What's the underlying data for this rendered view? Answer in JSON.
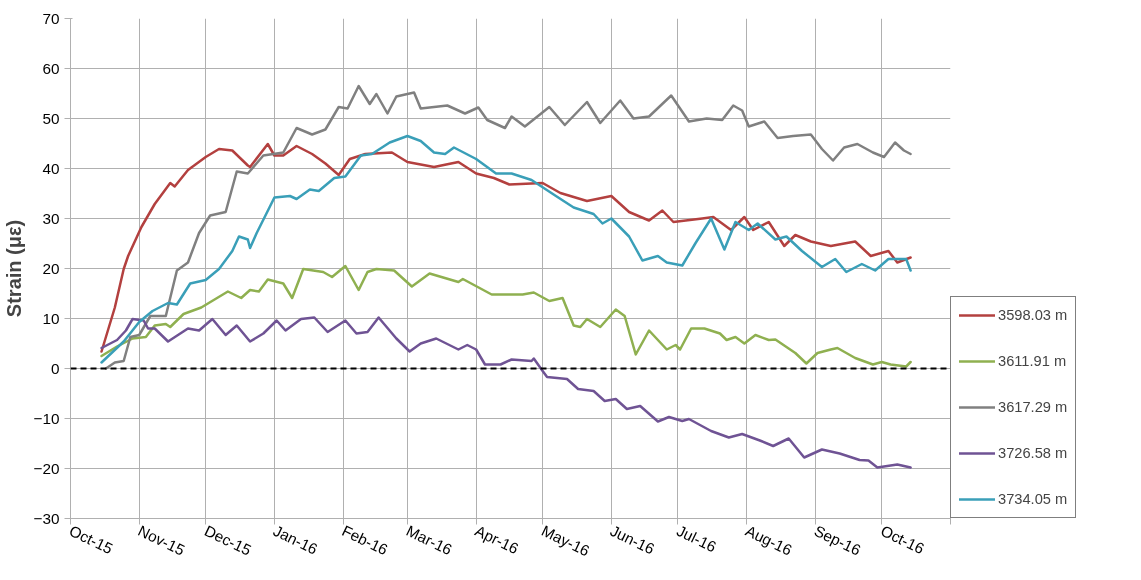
{
  "chart_data": {
    "type": "line",
    "ylabel": "Strain (με)",
    "xlim": [
      "2015-10-01",
      "2016-11-01"
    ],
    "ylim": [
      -30,
      70
    ],
    "yticks": [
      -30,
      -20,
      -10,
      0,
      10,
      20,
      30,
      40,
      50,
      60,
      70
    ],
    "xticks": [
      {
        "value": "2015-10-01",
        "label": "Oct-15"
      },
      {
        "value": "2015-11-01",
        "label": "Nov-15"
      },
      {
        "value": "2015-12-01",
        "label": "Dec-15"
      },
      {
        "value": "2016-01-01",
        "label": "Jan-16"
      },
      {
        "value": "2016-02-01",
        "label": "Feb-16"
      },
      {
        "value": "2016-03-01",
        "label": "Mar-16"
      },
      {
        "value": "2016-04-01",
        "label": "Apr-16"
      },
      {
        "value": "2016-05-01",
        "label": "May-16"
      },
      {
        "value": "2016-06-01",
        "label": "Jun-16"
      },
      {
        "value": "2016-07-01",
        "label": "Jul-16"
      },
      {
        "value": "2016-08-01",
        "label": "Aug-16"
      },
      {
        "value": "2016-09-01",
        "label": "Sep-16"
      },
      {
        "value": "2016-10-01",
        "label": "Oct-16"
      },
      {
        "value": "2016-11-01",
        "label": null
      }
    ],
    "grid": true,
    "legend": "bottom right",
    "marker": "none",
    "line_style": "solid",
    "ref_lines": [
      {
        "axis": "y",
        "value": 0,
        "color": "#000000",
        "line_style": "dashed"
      }
    ],
    "series": [
      {
        "name": "3598.03 m",
        "color": "#b3403f",
        "x": [
          "2015-10-15",
          "2015-10-21",
          "2015-10-25",
          "2015-10-27",
          "2015-11-02",
          "2015-11-08",
          "2015-11-15",
          "2015-11-17",
          "2015-11-23",
          "2015-12-01",
          "2015-12-07",
          "2015-12-13",
          "2015-12-20",
          "2015-12-21",
          "2015-12-29",
          "2016-01-01",
          "2016-01-05",
          "2016-01-11",
          "2016-01-18",
          "2016-01-24",
          "2016-01-30",
          "2016-02-04",
          "2016-02-11",
          "2016-02-23",
          "2016-03-01",
          "2016-03-13",
          "2016-03-24",
          "2016-04-01",
          "2016-04-09",
          "2016-04-16",
          "2016-05-01",
          "2016-05-09",
          "2016-05-21",
          "2016-06-01",
          "2016-06-09",
          "2016-06-18",
          "2016-06-24",
          "2016-06-29",
          "2016-07-12",
          "2016-07-17",
          "2016-07-25",
          "2016-07-31",
          "2016-08-04",
          "2016-08-11",
          "2016-08-18",
          "2016-08-23",
          "2016-08-30",
          "2016-09-08",
          "2016-09-19",
          "2016-09-26",
          "2016-10-04",
          "2016-10-08",
          "2016-10-14"
        ],
        "values": [
          3.4,
          12.2,
          19.9,
          22.5,
          28.3,
          32.9,
          37.1,
          36.4,
          39.7,
          42.3,
          43.9,
          43.6,
          40.6,
          40.3,
          44.9,
          42.6,
          42.6,
          44.5,
          42.9,
          41.0,
          38.7,
          41.9,
          42.9,
          43.2,
          41.3,
          40.3,
          41.3,
          39.0,
          38.1,
          36.8,
          37.1,
          35.1,
          33.5,
          34.5,
          31.3,
          29.6,
          31.6,
          29.3,
          30.0,
          30.3,
          27.7,
          30.3,
          27.7,
          29.3,
          24.5,
          26.7,
          25.4,
          24.5,
          25.4,
          22.5,
          23.5,
          21.2,
          22.2
        ]
      },
      {
        "name": "3611.91 m",
        "color": "#8fb050",
        "x": [
          "2015-10-15",
          "2015-10-22",
          "2015-10-29",
          "2015-11-04",
          "2015-11-08",
          "2015-11-13",
          "2015-11-15",
          "2015-11-21",
          "2015-11-29",
          "2015-12-11",
          "2015-12-17",
          "2015-12-21",
          "2015-12-25",
          "2015-12-29",
          "2016-01-05",
          "2016-01-09",
          "2016-01-14",
          "2016-01-23",
          "2016-01-27",
          "2016-02-02",
          "2016-02-08",
          "2016-02-12",
          "2016-02-16",
          "2016-02-24",
          "2016-03-03",
          "2016-03-11",
          "2016-03-24",
          "2016-03-26",
          "2016-04-08",
          "2016-04-22",
          "2016-04-27",
          "2016-05-04",
          "2016-05-10",
          "2016-05-15",
          "2016-05-18",
          "2016-05-21",
          "2016-05-27",
          "2016-06-03",
          "2016-06-07",
          "2016-06-12",
          "2016-06-18",
          "2016-06-26",
          "2016-06-30",
          "2016-07-02",
          "2016-07-07",
          "2016-07-13",
          "2016-07-20",
          "2016-07-23",
          "2016-07-27",
          "2016-07-31",
          "2016-08-05",
          "2016-08-11",
          "2016-08-14",
          "2016-08-23",
          "2016-08-28",
          "2016-09-02",
          "2016-09-08",
          "2016-09-11",
          "2016-09-19",
          "2016-09-27",
          "2016-10-01",
          "2016-10-05",
          "2016-10-12",
          "2016-10-14"
        ],
        "values": [
          2.5,
          4.4,
          6.0,
          6.3,
          8.6,
          8.9,
          8.3,
          10.9,
          12.2,
          15.4,
          14.1,
          15.7,
          15.4,
          17.8,
          17.0,
          14.1,
          19.9,
          19.3,
          18.3,
          20.5,
          15.7,
          19.3,
          19.9,
          19.6,
          16.4,
          19.0,
          17.3,
          17.9,
          14.8,
          14.8,
          15.2,
          13.5,
          14.1,
          8.6,
          8.3,
          9.9,
          8.3,
          11.8,
          10.5,
          2.8,
          7.6,
          3.8,
          4.7,
          3.8,
          8.0,
          8.0,
          7.0,
          5.7,
          6.3,
          5.0,
          6.7,
          5.7,
          5.8,
          3.1,
          1.0,
          3.1,
          3.8,
          4.1,
          2.1,
          0.8,
          1.3,
          0.8,
          0.4,
          1.3
        ]
      },
      {
        "name": "3617.29 m",
        "color": "#808080",
        "x": [
          "2015-10-17",
          "2015-10-21",
          "2015-10-25",
          "2015-10-28",
          "2015-11-01",
          "2015-11-06",
          "2015-11-13",
          "2015-11-18",
          "2015-11-23",
          "2015-11-28",
          "2015-12-03",
          "2015-12-10",
          "2015-12-15",
          "2015-12-20",
          "2015-12-27",
          "2016-01-05",
          "2016-01-11",
          "2016-01-18",
          "2016-01-24",
          "2016-01-30",
          "2016-02-03",
          "2016-02-08",
          "2016-02-13",
          "2016-02-16",
          "2016-02-21",
          "2016-02-25",
          "2016-03-04",
          "2016-03-07",
          "2016-03-19",
          "2016-03-27",
          "2016-04-02",
          "2016-04-06",
          "2016-04-14",
          "2016-04-17",
          "2016-04-23",
          "2016-05-04",
          "2016-05-11",
          "2016-05-21",
          "2016-05-27",
          "2016-06-05",
          "2016-06-11",
          "2016-06-18",
          "2016-06-28",
          "2016-07-06",
          "2016-07-14",
          "2016-07-21",
          "2016-07-26",
          "2016-07-30",
          "2016-08-02",
          "2016-08-09",
          "2016-08-15",
          "2016-08-22",
          "2016-08-30",
          "2016-09-04",
          "2016-09-09",
          "2016-09-14",
          "2016-09-20",
          "2016-09-27",
          "2016-10-02",
          "2016-10-07",
          "2016-10-11",
          "2016-10-14"
        ],
        "values": [
          0,
          1.2,
          1.5,
          6.3,
          6.7,
          10.5,
          10.5,
          19.6,
          21.2,
          27.1,
          30.6,
          31.3,
          39.4,
          39.0,
          42.6,
          43.2,
          48.1,
          46.8,
          47.8,
          52.3,
          52.0,
          56.5,
          52.9,
          54.9,
          51.0,
          54.4,
          55.2,
          52.0,
          52.6,
          51.0,
          52.2,
          49.7,
          48.1,
          50.4,
          48.4,
          52.3,
          48.7,
          53.3,
          49.1,
          53.6,
          50.0,
          50.4,
          54.6,
          49.4,
          50.0,
          49.7,
          52.6,
          51.6,
          48.4,
          49.4,
          46.1,
          46.5,
          46.8,
          43.9,
          41.6,
          44.2,
          44.9,
          43.2,
          42.3,
          45.2,
          43.6,
          42.9
        ]
      },
      {
        "name": "3726.58 m",
        "color": "#6f5394",
        "x": [
          "2015-10-15",
          "2015-10-22",
          "2015-10-26",
          "2015-10-29",
          "2015-11-03",
          "2015-11-05",
          "2015-11-08",
          "2015-11-14",
          "2015-11-23",
          "2015-11-28",
          "2015-12-04",
          "2015-12-10",
          "2015-12-15",
          "2015-12-21",
          "2015-12-27",
          "2016-01-02",
          "2016-01-06",
          "2016-01-13",
          "2016-01-19",
          "2016-01-25",
          "2016-02-02",
          "2016-02-07",
          "2016-02-12",
          "2016-02-17",
          "2016-02-25",
          "2016-03-02",
          "2016-03-07",
          "2016-03-14",
          "2016-03-24",
          "2016-03-28",
          "2016-04-01",
          "2016-04-05",
          "2016-04-12",
          "2016-04-17",
          "2016-04-26",
          "2016-04-27",
          "2016-05-01",
          "2016-05-03",
          "2016-05-12",
          "2016-05-17",
          "2016-05-24",
          "2016-05-29",
          "2016-06-03",
          "2016-06-08",
          "2016-06-14",
          "2016-06-22",
          "2016-06-27",
          "2016-07-03",
          "2016-07-06",
          "2016-07-16",
          "2016-07-24",
          "2016-07-30",
          "2016-08-07",
          "2016-08-13",
          "2016-08-20",
          "2016-08-27",
          "2016-09-04",
          "2016-09-12",
          "2016-09-21",
          "2016-09-25",
          "2016-09-29",
          "2016-10-08",
          "2016-10-14"
        ],
        "values": [
          4.1,
          5.7,
          7.6,
          9.9,
          9.6,
          8.0,
          8.0,
          5.4,
          8.0,
          7.6,
          9.9,
          6.7,
          8.6,
          5.4,
          7.0,
          9.6,
          7.6,
          9.9,
          10.2,
          7.3,
          9.6,
          7.0,
          7.3,
          10.2,
          6.0,
          3.4,
          5.0,
          6.0,
          3.8,
          4.7,
          3.8,
          0.8,
          0.8,
          1.8,
          1.5,
          2.0,
          -0.5,
          -1.7,
          -2.1,
          -4.1,
          -4.5,
          -6.5,
          -6.1,
          -8.1,
          -7.5,
          -10.6,
          -9.7,
          -10.5,
          -10.1,
          -12.5,
          -13.8,
          -13.1,
          -14.4,
          -15.5,
          -14.0,
          -17.8,
          -16.2,
          -17.0,
          -18.3,
          -18.4,
          -19.8,
          -19.2,
          -19.8
        ]
      },
      {
        "name": "3734.05 m",
        "color": "#3a9fb8",
        "x": [
          "2015-10-15",
          "2015-10-25",
          "2015-11-01",
          "2015-11-07",
          "2015-11-14",
          "2015-11-18",
          "2015-11-24",
          "2015-12-01",
          "2015-12-07",
          "2015-12-13",
          "2015-12-16",
          "2015-12-20",
          "2015-12-21",
          "2015-12-24",
          "2016-01-01",
          "2016-01-08",
          "2016-01-11",
          "2016-01-17",
          "2016-01-21",
          "2016-01-28",
          "2016-02-02",
          "2016-02-09",
          "2016-02-14",
          "2016-02-22",
          "2016-03-01",
          "2016-03-07",
          "2016-03-13",
          "2016-03-18",
          "2016-03-22",
          "2016-04-01",
          "2016-04-10",
          "2016-04-17",
          "2016-04-26",
          "2016-05-07",
          "2016-05-15",
          "2016-05-24",
          "2016-05-28",
          "2016-06-01",
          "2016-06-09",
          "2016-06-15",
          "2016-06-22",
          "2016-06-26",
          "2016-07-03",
          "2016-07-09",
          "2016-07-16",
          "2016-07-22",
          "2016-07-27",
          "2016-08-02",
          "2016-08-06",
          "2016-08-14",
          "2016-08-19",
          "2016-08-26",
          "2016-09-04",
          "2016-09-10",
          "2016-09-15",
          "2016-09-22",
          "2016-09-28",
          "2016-10-04",
          "2016-10-12",
          "2016-10-14"
        ],
        "values": [
          1.2,
          5.4,
          9.3,
          11.5,
          13.1,
          12.8,
          17.0,
          17.7,
          19.9,
          23.5,
          26.4,
          25.8,
          24.1,
          27.1,
          34.2,
          34.5,
          33.9,
          35.8,
          35.5,
          38.1,
          38.4,
          42.6,
          42.9,
          45.2,
          46.5,
          45.5,
          43.2,
          42.9,
          44.2,
          41.9,
          39.0,
          39.0,
          37.7,
          34.5,
          32.2,
          30.9,
          29.0,
          30.0,
          26.4,
          21.6,
          22.5,
          21.2,
          20.6,
          25.1,
          30.0,
          23.8,
          29.3,
          27.7,
          29.0,
          25.8,
          26.4,
          23.5,
          20.3,
          21.9,
          19.3,
          20.9,
          19.6,
          21.9,
          21.9,
          19.6
        ]
      }
    ]
  }
}
